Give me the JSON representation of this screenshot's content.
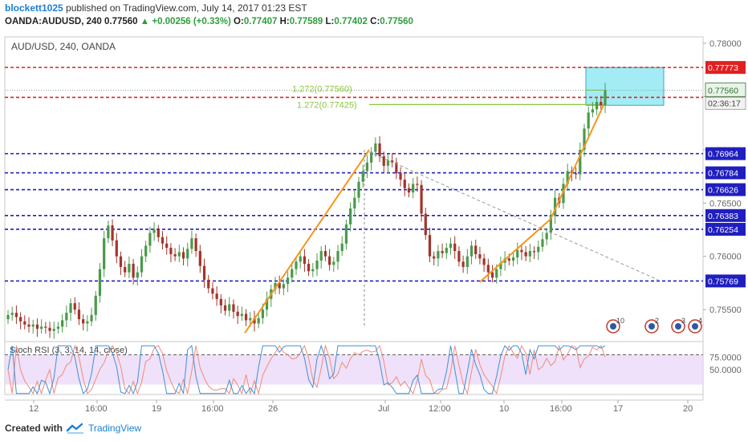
{
  "header": {
    "author": "blockett1025",
    "published": "published on TradingView.com, July 14, 2017 01:23 EST",
    "symbol": "OANDA:AUDUSD, 240",
    "last": "0.77560",
    "change": "+0.00256 (+0.33%)",
    "o_label": "O:",
    "o": "0.77407",
    "h_label": "H:",
    "h": "0.77589",
    "l_label": "L:",
    "l": "0.77402",
    "c_label": "C:",
    "c": "0.77560"
  },
  "footer": {
    "created_with": "Created with",
    "brand": "TradingView"
  },
  "colors": {
    "bull": "#4a9a4a",
    "bear": "#a3342c",
    "support": "#1f1fbf",
    "resist": "#e02020",
    "trend": "#f5961e",
    "fib": "#8dc63f",
    "target_box": "#a3ecf5",
    "stoch_bg": "#e8d4f7",
    "k_line": "#3f8fd9",
    "d_line": "#f08a7a"
  },
  "chart_data": {
    "type": "candlestick",
    "title": "AUD/USD, 240, OANDA",
    "price_axis": {
      "ylim": [
        0.752,
        0.7806
      ],
      "ticks": [
        "0.78000",
        "0.77500",
        "0.77000",
        "0.76500",
        "0.76000",
        "0.75500"
      ]
    },
    "time_axis": {
      "ticks": [
        "12",
        "16:00",
        "19",
        "16:00",
        "26",
        "Jul",
        "12:00",
        "10",
        "16:00",
        "17",
        "20"
      ]
    },
    "horizontal_levels": [
      {
        "price": 0.77773,
        "label": "0.77773",
        "kind": "resistance"
      },
      {
        "price": 0.77492,
        "label": "0.77492",
        "kind": "resistance"
      },
      {
        "price": 0.76964,
        "label": "0.76964",
        "kind": "support"
      },
      {
        "price": 0.76784,
        "label": "0.76784",
        "kind": "support"
      },
      {
        "price": 0.76626,
        "label": "0.76626",
        "kind": "support"
      },
      {
        "price": 0.76383,
        "label": "0.76383",
        "kind": "support"
      },
      {
        "price": 0.76254,
        "label": "0.76254",
        "kind": "support"
      },
      {
        "price": 0.75769,
        "label": "0.75769",
        "kind": "support"
      }
    ],
    "fib_labels": [
      {
        "text": "1.272(0.77560)",
        "price": 0.7756
      },
      {
        "text": "1.272(0.77425)",
        "price": 0.77425
      }
    ],
    "last_price_label": "0.77560",
    "countdown": "02:36:17",
    "event_badges": [
      "10",
      "2",
      "3",
      "4"
    ],
    "close_series": [
      0.7545,
      0.7547,
      0.7543,
      0.7539,
      0.7536,
      0.7534,
      0.7536,
      0.7532,
      0.7534,
      0.7533,
      0.753,
      0.7532,
      0.7534,
      0.754,
      0.7547,
      0.7556,
      0.755,
      0.7541,
      0.7537,
      0.7539,
      0.7545,
      0.7563,
      0.7588,
      0.7617,
      0.7629,
      0.7615,
      0.76,
      0.759,
      0.7585,
      0.7593,
      0.758,
      0.7585,
      0.76,
      0.761,
      0.7622,
      0.7625,
      0.7618,
      0.7612,
      0.7608,
      0.7602,
      0.76,
      0.7604,
      0.7598,
      0.7607,
      0.7617,
      0.7605,
      0.7591,
      0.7578,
      0.757,
      0.7565,
      0.756,
      0.7554,
      0.7549,
      0.7555,
      0.7548,
      0.7544,
      0.7546,
      0.754,
      0.7542,
      0.7537,
      0.7542,
      0.755,
      0.756,
      0.7569,
      0.7575,
      0.757,
      0.7574,
      0.758,
      0.7588,
      0.7595,
      0.76,
      0.7593,
      0.7586,
      0.7588,
      0.7596,
      0.7605,
      0.76,
      0.7592,
      0.7595,
      0.7605,
      0.7612,
      0.763,
      0.7645,
      0.7655,
      0.767,
      0.768,
      0.7688,
      0.7698,
      0.7706,
      0.7694,
      0.7685,
      0.769,
      0.7688,
      0.7678,
      0.7672,
      0.7664,
      0.766,
      0.7668,
      0.7667,
      0.764,
      0.762,
      0.76,
      0.7598,
      0.7605,
      0.7603,
      0.7608,
      0.7612,
      0.7605,
      0.7595,
      0.759,
      0.76,
      0.761,
      0.7602,
      0.7598,
      0.7592,
      0.7585,
      0.758,
      0.7588,
      0.7594,
      0.7598,
      0.7596,
      0.7599,
      0.7606,
      0.7604,
      0.76,
      0.7605,
      0.7604,
      0.7609,
      0.7616,
      0.7622,
      0.7638,
      0.7655,
      0.765,
      0.7668,
      0.768,
      0.7678,
      0.7677,
      0.77,
      0.772,
      0.7735,
      0.7738,
      0.7745,
      0.7742,
      0.7756
    ],
    "indicator": {
      "name": "Stoch RSI (3, 3, 14, 14, close)",
      "levels": [
        "75.0000",
        "50.0000"
      ],
      "upper_band": 80,
      "lower_band": 20
    }
  }
}
